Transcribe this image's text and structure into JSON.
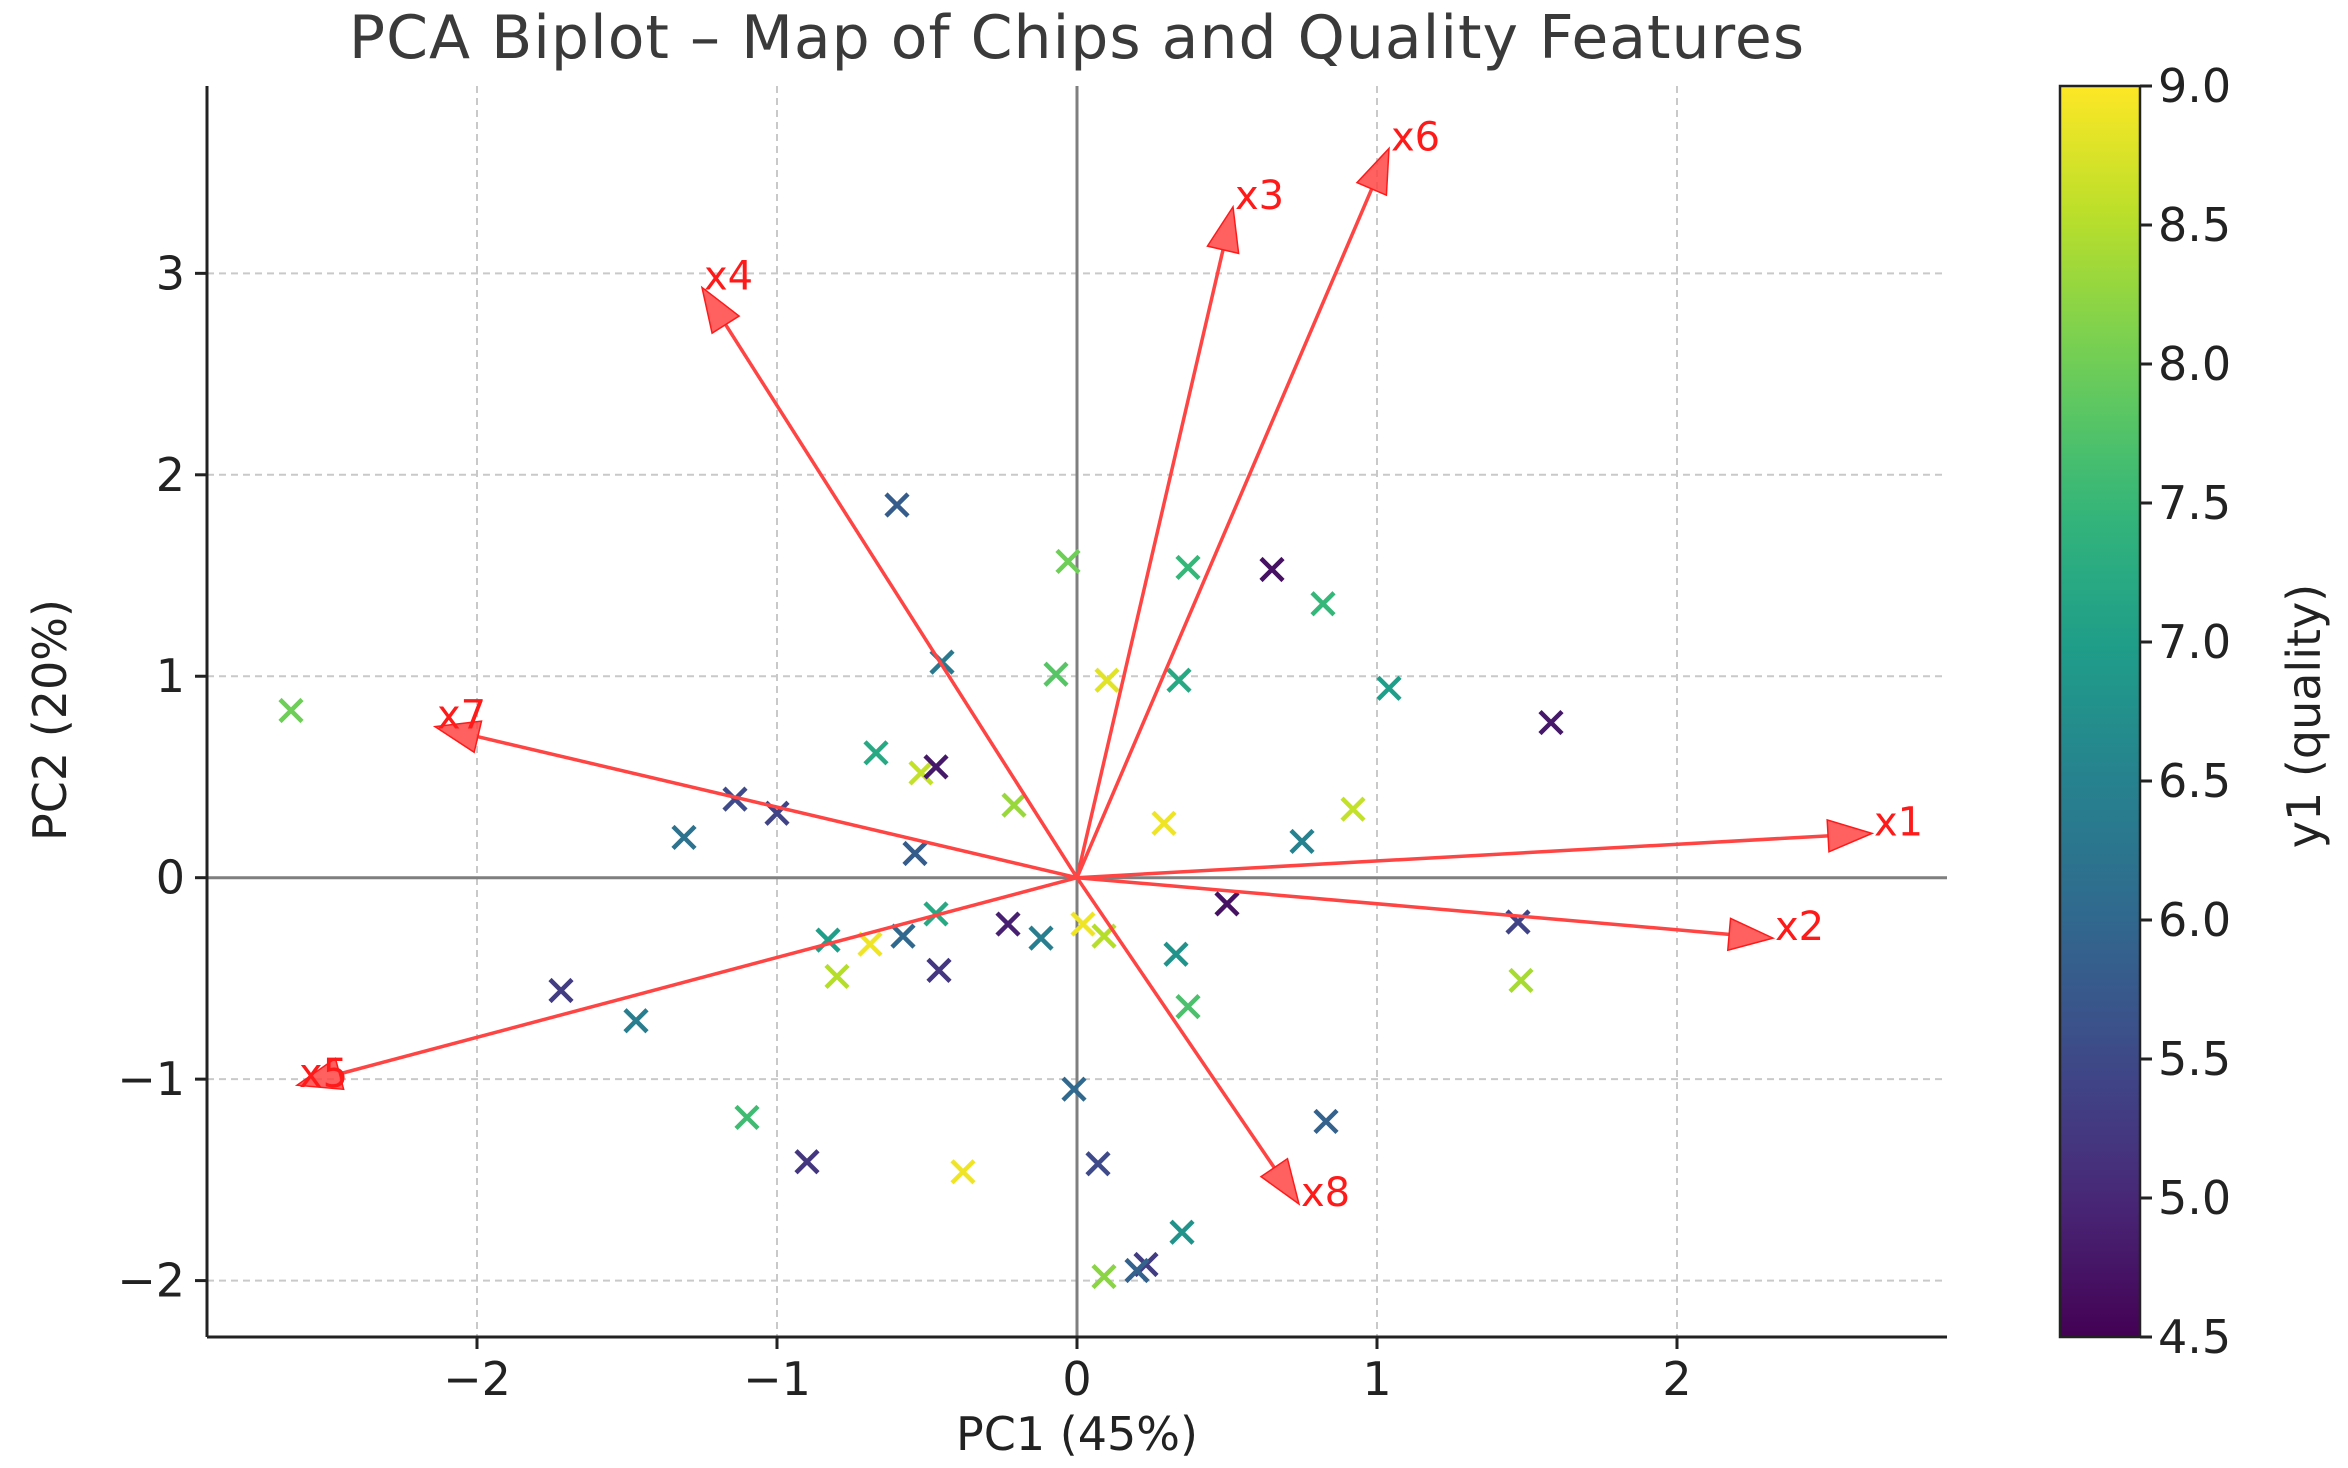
{
  "chart_data": {
    "type": "scatter",
    "title": "PCA Biplot – Map of Chips and Quality Features",
    "xlabel": "PC1 (45%)",
    "ylabel": "PC2 (20%)",
    "xlim": [
      -2.9,
      2.9
    ],
    "ylim": [
      -2.28,
      3.93
    ],
    "xticks": [
      -2,
      -1,
      0,
      1,
      2
    ],
    "yticks": [
      -2,
      -1,
      0,
      1,
      2,
      3
    ],
    "xtick_labels": [
      "−2",
      "−1",
      "0",
      "1",
      "2"
    ],
    "ytick_labels": [
      "−2",
      "−1",
      "0",
      "1",
      "2",
      "3"
    ],
    "grid": true,
    "marker": "x",
    "colorbar": {
      "label": "y1 (quality)",
      "colormap": "viridis",
      "range": [
        4.5,
        9.0
      ],
      "ticks": [
        4.5,
        5.0,
        5.5,
        6.0,
        6.5,
        7.0,
        7.5,
        8.0,
        8.5,
        9.0
      ],
      "tick_labels": [
        "4.5",
        "5.0",
        "5.5",
        "6.0",
        "6.5",
        "7.0",
        "7.5",
        "8.0",
        "8.5",
        "9.0"
      ]
    },
    "points": [
      {
        "x": -2.62,
        "y": 0.83,
        "q": 8.0
      },
      {
        "x": -0.6,
        "y": 1.85,
        "q": 5.8
      },
      {
        "x": -0.03,
        "y": 1.57,
        "q": 8.0
      },
      {
        "x": 0.37,
        "y": 1.54,
        "q": 7.5
      },
      {
        "x": 0.65,
        "y": 1.53,
        "q": 4.7
      },
      {
        "x": 0.82,
        "y": 1.36,
        "q": 7.5
      },
      {
        "x": -0.45,
        "y": 1.07,
        "q": 6.3
      },
      {
        "x": -0.07,
        "y": 1.01,
        "q": 7.8
      },
      {
        "x": 0.1,
        "y": 0.98,
        "q": 8.8
      },
      {
        "x": 0.34,
        "y": 0.98,
        "q": 7.2
      },
      {
        "x": 1.04,
        "y": 0.94,
        "q": 7.0
      },
      {
        "x": 1.58,
        "y": 0.77,
        "q": 4.8
      },
      {
        "x": -0.67,
        "y": 0.62,
        "q": 7.2
      },
      {
        "x": -0.52,
        "y": 0.52,
        "q": 8.6
      },
      {
        "x": -0.47,
        "y": 0.55,
        "q": 4.8
      },
      {
        "x": -0.21,
        "y": 0.36,
        "q": 8.3
      },
      {
        "x": 0.92,
        "y": 0.34,
        "q": 8.6
      },
      {
        "x": -1.14,
        "y": 0.39,
        "q": 5.5
      },
      {
        "x": -1.0,
        "y": 0.32,
        "q": 5.4
      },
      {
        "x": -1.31,
        "y": 0.2,
        "q": 6.2
      },
      {
        "x": 0.29,
        "y": 0.27,
        "q": 8.9
      },
      {
        "x": 0.75,
        "y": 0.18,
        "q": 6.5
      },
      {
        "x": -0.54,
        "y": 0.12,
        "q": 5.8
      },
      {
        "x": 0.5,
        "y": -0.13,
        "q": 4.7
      },
      {
        "x": 1.47,
        "y": -0.22,
        "q": 5.4
      },
      {
        "x": -0.47,
        "y": -0.18,
        "q": 7.2
      },
      {
        "x": -0.23,
        "y": -0.23,
        "q": 4.9
      },
      {
        "x": 0.02,
        "y": -0.23,
        "q": 8.9
      },
      {
        "x": 0.09,
        "y": -0.29,
        "q": 8.5
      },
      {
        "x": -0.12,
        "y": -0.3,
        "q": 6.4
      },
      {
        "x": -0.83,
        "y": -0.31,
        "q": 7.0
      },
      {
        "x": -0.69,
        "y": -0.33,
        "q": 8.9
      },
      {
        "x": -0.58,
        "y": -0.29,
        "q": 6.0
      },
      {
        "x": 0.33,
        "y": -0.38,
        "q": 6.8
      },
      {
        "x": -0.46,
        "y": -0.46,
        "q": 5.2
      },
      {
        "x": -1.72,
        "y": -0.56,
        "q": 5.3
      },
      {
        "x": -0.8,
        "y": -0.49,
        "q": 8.5
      },
      {
        "x": 0.37,
        "y": -0.64,
        "q": 7.7
      },
      {
        "x": 1.48,
        "y": -0.51,
        "q": 8.4
      },
      {
        "x": -1.47,
        "y": -0.71,
        "q": 6.4
      },
      {
        "x": -0.01,
        "y": -1.05,
        "q": 6.0
      },
      {
        "x": 0.83,
        "y": -1.21,
        "q": 5.9
      },
      {
        "x": -1.1,
        "y": -1.19,
        "q": 7.6
      },
      {
        "x": -0.9,
        "y": -1.41,
        "q": 5.2
      },
      {
        "x": -0.38,
        "y": -1.46,
        "q": 8.9
      },
      {
        "x": 0.07,
        "y": -1.42,
        "q": 5.5
      },
      {
        "x": 0.35,
        "y": -1.76,
        "q": 6.8
      },
      {
        "x": 0.23,
        "y": -1.92,
        "q": 5.3
      },
      {
        "x": 0.2,
        "y": -1.95,
        "q": 5.9
      },
      {
        "x": 0.09,
        "y": -1.98,
        "q": 8.2
      }
    ],
    "loadings": [
      {
        "name": "x1",
        "x": 2.65,
        "y": 0.22
      },
      {
        "name": "x2",
        "x": 2.32,
        "y": -0.3
      },
      {
        "name": "x3",
        "x": 0.52,
        "y": 3.33
      },
      {
        "name": "x4",
        "x": -1.25,
        "y": 2.93
      },
      {
        "name": "x5",
        "x": -2.6,
        "y": -1.03
      },
      {
        "name": "x6",
        "x": 1.04,
        "y": 3.62
      },
      {
        "name": "x7",
        "x": -2.14,
        "y": 0.75
      },
      {
        "name": "x8",
        "x": 0.74,
        "y": -1.62
      }
    ],
    "colors": {
      "arrow": "#ff4444",
      "arrow_label": "#ff1a1a",
      "grid": "#c9c9c9",
      "zero_line": "#7f7f7f",
      "axis": "#222222"
    }
  }
}
